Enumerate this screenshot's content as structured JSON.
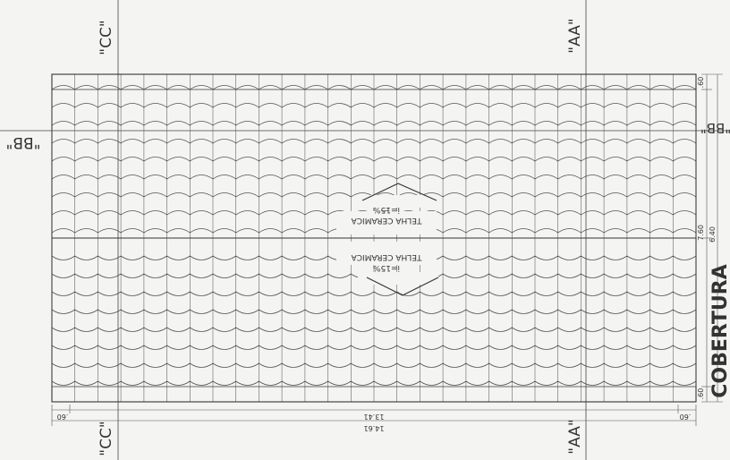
{
  "section_labels": {
    "cc_top": "\"CC\"",
    "aa_top": "\"AA\"",
    "bb_left": "\"BB\"",
    "bb_right": "\"BB\"",
    "cc_bottom": "\"CC\"",
    "aa_bottom": "\"AA\""
  },
  "roof_notes": {
    "upper_line1": "TELHA CERAMICA",
    "upper_line2": "i=15%",
    "lower_line1": "TELHA CERAMICA",
    "lower_line2": "i=15%"
  },
  "dimensions": {
    "bottom_left": ".60",
    "bottom_inner": "13.41",
    "bottom_total": "14.61",
    "bottom_right": ".60",
    "right_top": ".60",
    "right_mid1": "7.60",
    "right_mid2": "6.40",
    "right_bottom": ".60"
  },
  "title": "COBERTURA",
  "colors": {
    "line": "#444444",
    "paper": "#f4f4f2"
  }
}
